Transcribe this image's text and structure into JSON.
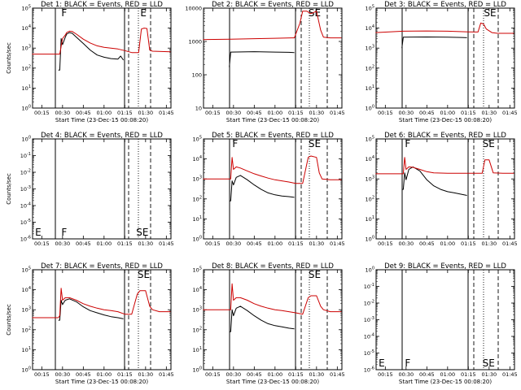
{
  "chart_data": [
    {
      "type": "line",
      "title": "Det 1: BLACK = Events, RED = LLD",
      "xlabel": "Start Time (23-Dec-15 00:08:20)",
      "ylabel": "Counts/sec",
      "x_ticks": [
        "00:15",
        "00:30",
        "00:45",
        "01:00",
        "01:15",
        "01:30",
        "01:45"
      ],
      "xlim": [
        "00:08:20",
        "01:48:20"
      ],
      "y_scale": "log",
      "y_ticks": [
        "10^0",
        "10^1",
        "10^2",
        "10^3",
        "10^4",
        "10^5"
      ],
      "ylim": [
        1,
        100000
      ],
      "markers": [
        {
          "label": "F",
          "time": "00:28"
        },
        {
          "label": "E",
          "time": "01:25"
        }
      ],
      "series": [
        {
          "color": "#000000",
          "x": [
            "00:27",
            "00:28",
            "00:29",
            "00:30",
            "00:32",
            "00:33",
            "00:35",
            "00:37",
            "00:40",
            "00:45",
            "00:50",
            "00:55",
            "01:00",
            "01:05",
            "01:10",
            "01:12",
            "01:14"
          ],
          "y": [
            80,
            80,
            3000,
            1500,
            3500,
            5000,
            6000,
            5500,
            3500,
            1700,
            800,
            450,
            350,
            300,
            280,
            400,
            250
          ]
        },
        {
          "color": "#cc0000",
          "x": [
            "00:08",
            "00:27",
            "00:28",
            "00:30",
            "00:32",
            "00:33",
            "00:35",
            "00:37",
            "00:40",
            "00:45",
            "00:50",
            "00:55",
            "01:00",
            "01:05",
            "01:10",
            "01:15",
            "01:20",
            "01:25",
            "01:27",
            "01:29",
            "01:31",
            "01:33",
            "01:35",
            "01:48"
          ],
          "y": [
            500,
            500,
            500,
            3000,
            4500,
            6000,
            7000,
            6800,
            5000,
            2800,
            1800,
            1300,
            1100,
            1000,
            900,
            750,
            600,
            600,
            9000,
            10000,
            9500,
            800,
            700,
            650
          ]
        }
      ]
    },
    {
      "type": "line",
      "title": "Det 2: BLACK = Events, RED = LLD",
      "xlabel": "Start Time (23-Dec-15 00:08:20)",
      "ylabel": "",
      "x_ticks": [
        "00:15",
        "00:30",
        "00:45",
        "01:00",
        "01:15",
        "01:30",
        "01:45"
      ],
      "xlim": [
        "00:08:20",
        "01:48:20"
      ],
      "y_scale": "log",
      "y_ticks": [
        "10",
        "100",
        "1000",
        "10000"
      ],
      "ylim": [
        10,
        15000
      ],
      "markers": [
        {
          "label": "SE",
          "time": "01:23"
        }
      ],
      "series": [
        {
          "color": "#000000",
          "x": [
            "00:27",
            "00:28",
            "00:45",
            "01:00",
            "01:10",
            "01:14"
          ],
          "y": [
            200,
            600,
            620,
            600,
            590,
            580
          ]
        },
        {
          "color": "#cc0000",
          "x": [
            "00:08",
            "00:28",
            "00:45",
            "01:00",
            "01:12",
            "01:14",
            "01:18",
            "01:20",
            "01:23",
            "01:26",
            "01:30",
            "01:33",
            "01:35",
            "01:40",
            "01:48"
          ],
          "y": [
            1500,
            1550,
            1600,
            1650,
            1700,
            1700,
            5000,
            12000,
            12000,
            10000,
            12000,
            3000,
            1800,
            1700,
            1700
          ]
        }
      ]
    },
    {
      "type": "line",
      "title": "Det 3: BLACK = Events, RED = LLD",
      "xlabel": "Start Time (23-Dec-15 00:08:20)",
      "ylabel": "",
      "x_ticks": [
        "00:15",
        "00:30",
        "00:45",
        "01:00",
        "01:15",
        "01:30",
        "01:45"
      ],
      "xlim": [
        "00:08:20",
        "01:48:20"
      ],
      "y_scale": "log",
      "y_ticks": [
        "10^0",
        "10^1",
        "10^2",
        "10^3",
        "10^4",
        "10^5"
      ],
      "ylim": [
        1,
        100000
      ],
      "markers": [
        {
          "label": "SE",
          "time": "01:25"
        }
      ],
      "series": [
        {
          "color": "#000000",
          "x": [
            "00:27",
            "00:28",
            "00:45",
            "01:00",
            "01:10",
            "01:14"
          ],
          "y": [
            1000,
            3500,
            3600,
            3500,
            3400,
            3300
          ]
        },
        {
          "color": "#cc0000",
          "x": [
            "00:08",
            "00:28",
            "00:45",
            "01:00",
            "01:15",
            "01:22",
            "01:24",
            "01:26",
            "01:28",
            "01:32",
            "01:36",
            "01:48"
          ],
          "y": [
            6000,
            7000,
            7200,
            7000,
            6500,
            6400,
            18000,
            16000,
            9000,
            6000,
            5500,
            5500
          ]
        }
      ]
    },
    {
      "type": "line",
      "title": "Det 4: BLACK = Events, RED = LLD",
      "xlabel": "",
      "ylabel": "Counts/sec",
      "x_ticks": [
        "00:15",
        "00:30",
        "00:45",
        "01:00",
        "01:15",
        "01:30",
        "01:45"
      ],
      "xlim": [
        "00:08:20",
        "01:48:20"
      ],
      "y_scale": "log",
      "y_ticks": [
        "10^-6",
        "10^-5",
        "10^-4",
        "10^-3",
        "10^-2",
        "10^-1",
        "10^0"
      ],
      "ylim": [
        1e-06,
        1
      ],
      "markers": [
        {
          "label": "E",
          "time": "00:09"
        },
        {
          "label": "F",
          "time": "00:28"
        },
        {
          "label": "SE",
          "time": "01:22"
        }
      ],
      "series": []
    },
    {
      "type": "line",
      "title": "Det 5: BLACK = Events, RED = LLD",
      "xlabel": "",
      "ylabel": "",
      "x_ticks": [
        "00:15",
        "00:30",
        "00:45",
        "01:00",
        "01:15",
        "01:30",
        "01:45"
      ],
      "xlim": [
        "00:08:20",
        "01:48:20"
      ],
      "y_scale": "log",
      "y_ticks": [
        "10^0",
        "10^1",
        "10^2",
        "10^3",
        "10^4",
        "10^5"
      ],
      "ylim": [
        1,
        100000
      ],
      "markers": [
        {
          "label": "F",
          "time": "00:28"
        },
        {
          "label": "SE",
          "time": "01:23"
        }
      ],
      "series": [
        {
          "color": "#000000",
          "x": [
            "00:27",
            "00:28",
            "00:29",
            "00:30",
            "00:32",
            "00:35",
            "00:40",
            "00:45",
            "00:50",
            "00:55",
            "01:00",
            "01:05",
            "01:10",
            "01:14"
          ],
          "y": [
            80,
            80,
            800,
            500,
            1200,
            1500,
            900,
            500,
            300,
            200,
            160,
            140,
            130,
            120
          ]
        },
        {
          "color": "#cc0000",
          "x": [
            "00:08",
            "00:27",
            "00:28",
            "00:29",
            "00:30",
            "00:32",
            "00:35",
            "00:40",
            "00:45",
            "00:50",
            "00:55",
            "01:00",
            "01:05",
            "01:10",
            "01:15",
            "01:20",
            "01:24",
            "01:26",
            "01:30",
            "01:32",
            "01:34",
            "01:40",
            "01:48"
          ],
          "y": [
            1000,
            1000,
            1000,
            12000,
            3000,
            4000,
            3500,
            2500,
            1800,
            1400,
            1100,
            900,
            800,
            700,
            600,
            600,
            12000,
            14000,
            12000,
            2000,
            1000,
            900,
            900
          ]
        }
      ]
    },
    {
      "type": "line",
      "title": "Det 6: BLACK = Events, RED = LLD",
      "xlabel": "",
      "ylabel": "",
      "x_ticks": [
        "00:15",
        "00:30",
        "00:45",
        "01:00",
        "01:15",
        "01:30",
        "01:45"
      ],
      "xlim": [
        "00:08:20",
        "01:48:20"
      ],
      "y_scale": "log",
      "y_ticks": [
        "10^0",
        "10^1",
        "10^2",
        "10^3",
        "10^4",
        "10^5"
      ],
      "ylim": [
        1,
        100000
      ],
      "markers": [
        {
          "label": "F",
          "time": "00:28"
        },
        {
          "label": "SE",
          "time": "01:24"
        }
      ],
      "series": [
        {
          "color": "#000000",
          "x": [
            "00:27",
            "00:28",
            "00:29",
            "00:30",
            "00:32",
            "00:35",
            "00:40",
            "00:45",
            "00:50",
            "00:55",
            "01:00",
            "01:05",
            "01:10",
            "01:14"
          ],
          "y": [
            300,
            300,
            2000,
            900,
            3000,
            4000,
            2500,
            900,
            450,
            300,
            230,
            200,
            170,
            150
          ]
        },
        {
          "color": "#cc0000",
          "x": [
            "00:08",
            "00:27",
            "00:28",
            "00:29",
            "00:30",
            "00:32",
            "00:35",
            "00:40",
            "00:45",
            "00:50",
            "01:00",
            "01:10",
            "01:20",
            "01:25",
            "01:27",
            "01:30",
            "01:33",
            "01:40",
            "01:48"
          ],
          "y": [
            1800,
            1800,
            1800,
            12000,
            3000,
            4000,
            3800,
            3000,
            2300,
            2000,
            1900,
            1900,
            1900,
            1900,
            9000,
            9000,
            2000,
            1900,
            1900
          ]
        }
      ]
    },
    {
      "type": "line",
      "title": "Det 7: BLACK = Events, RED = LLD",
      "xlabel": "Start Time (23-Dec-15 00:08:20)",
      "ylabel": "Counts/sec",
      "x_ticks": [
        "00:15",
        "00:30",
        "00:45",
        "01:00",
        "01:15",
        "01:30",
        "01:45"
      ],
      "xlim": [
        "00:08:20",
        "01:48:20"
      ],
      "y_scale": "log",
      "y_ticks": [
        "10^0",
        "10^1",
        "10^2",
        "10^3",
        "10^4",
        "10^5"
      ],
      "ylim": [
        1,
        100000
      ],
      "markers": [
        {
          "label": "SE",
          "time": "01:23"
        }
      ],
      "series": [
        {
          "color": "#000000",
          "x": [
            "00:27",
            "00:28",
            "00:29",
            "00:30",
            "00:32",
            "00:35",
            "00:40",
            "00:45",
            "00:50",
            "00:55",
            "01:00",
            "01:05",
            "01:10",
            "01:14"
          ],
          "y": [
            300,
            300,
            3000,
            1800,
            3000,
            3500,
            2500,
            1400,
            900,
            700,
            550,
            450,
            400,
            350
          ]
        },
        {
          "color": "#cc0000",
          "x": [
            "00:08",
            "00:27",
            "00:28",
            "00:29",
            "00:30",
            "00:32",
            "00:35",
            "00:40",
            "00:45",
            "00:50",
            "00:55",
            "01:00",
            "01:05",
            "01:10",
            "01:15",
            "01:20",
            "01:24",
            "01:26",
            "01:30",
            "01:33",
            "01:35",
            "01:40",
            "01:48"
          ],
          "y": [
            400,
            400,
            500,
            12000,
            3000,
            4000,
            4000,
            3000,
            2000,
            1500,
            1200,
            1000,
            900,
            800,
            600,
            600,
            6000,
            9000,
            9000,
            1500,
            1000,
            800,
            800
          ]
        }
      ]
    },
    {
      "type": "line",
      "title": "Det 8: BLACK = Events, RED = LLD",
      "xlabel": "Start Time (23-Dec-15 00:08:20)",
      "ylabel": "",
      "x_ticks": [
        "00:15",
        "00:30",
        "00:45",
        "01:00",
        "01:15",
        "01:30",
        "01:45"
      ],
      "xlim": [
        "00:08:20",
        "01:48:20"
      ],
      "y_scale": "log",
      "y_ticks": [
        "10^0",
        "10^1",
        "10^2",
        "10^3",
        "10^4",
        "10^5"
      ],
      "ylim": [
        1,
        100000
      ],
      "markers": [
        {
          "label": "SE",
          "time": "01:23"
        }
      ],
      "series": [
        {
          "color": "#000000",
          "x": [
            "00:27",
            "00:28",
            "00:29",
            "00:30",
            "00:32",
            "00:35",
            "00:40",
            "00:45",
            "00:50",
            "00:55",
            "01:00",
            "01:05",
            "01:10",
            "01:14"
          ],
          "y": [
            80,
            80,
            1000,
            500,
            1200,
            1500,
            900,
            500,
            300,
            200,
            160,
            140,
            120,
            110
          ]
        },
        {
          "color": "#cc0000",
          "x": [
            "00:08",
            "00:27",
            "00:28",
            "00:29",
            "00:30",
            "00:32",
            "00:35",
            "00:40",
            "00:45",
            "00:50",
            "00:55",
            "01:00",
            "01:05",
            "01:10",
            "01:15",
            "01:20",
            "01:24",
            "01:26",
            "01:30",
            "01:33",
            "01:35",
            "01:40",
            "01:48"
          ],
          "y": [
            1000,
            1000,
            1000,
            20000,
            3000,
            4000,
            4000,
            3000,
            2000,
            1500,
            1200,
            1000,
            900,
            800,
            700,
            600,
            4000,
            5000,
            5000,
            1500,
            1000,
            800,
            800
          ]
        }
      ]
    },
    {
      "type": "line",
      "title": "Det 9: BLACK = Events, RED = LLD",
      "xlabel": "Start Time (23-Dec-15 00:08:20)",
      "ylabel": "",
      "x_ticks": [
        "00:15",
        "00:30",
        "00:45",
        "01:00",
        "01:15",
        "01:30",
        "01:45"
      ],
      "xlim": [
        "00:08:20",
        "01:48:20"
      ],
      "y_scale": "log",
      "y_ticks": [
        "10^-6",
        "10^-5",
        "10^-4",
        "10^-3",
        "10^-2",
        "10^-1",
        "10^0"
      ],
      "ylim": [
        1e-06,
        1
      ],
      "markers": [
        {
          "label": "E",
          "time": "00:09"
        },
        {
          "label": "F",
          "time": "00:28"
        },
        {
          "label": "SE",
          "time": "01:24"
        }
      ],
      "series": []
    }
  ]
}
